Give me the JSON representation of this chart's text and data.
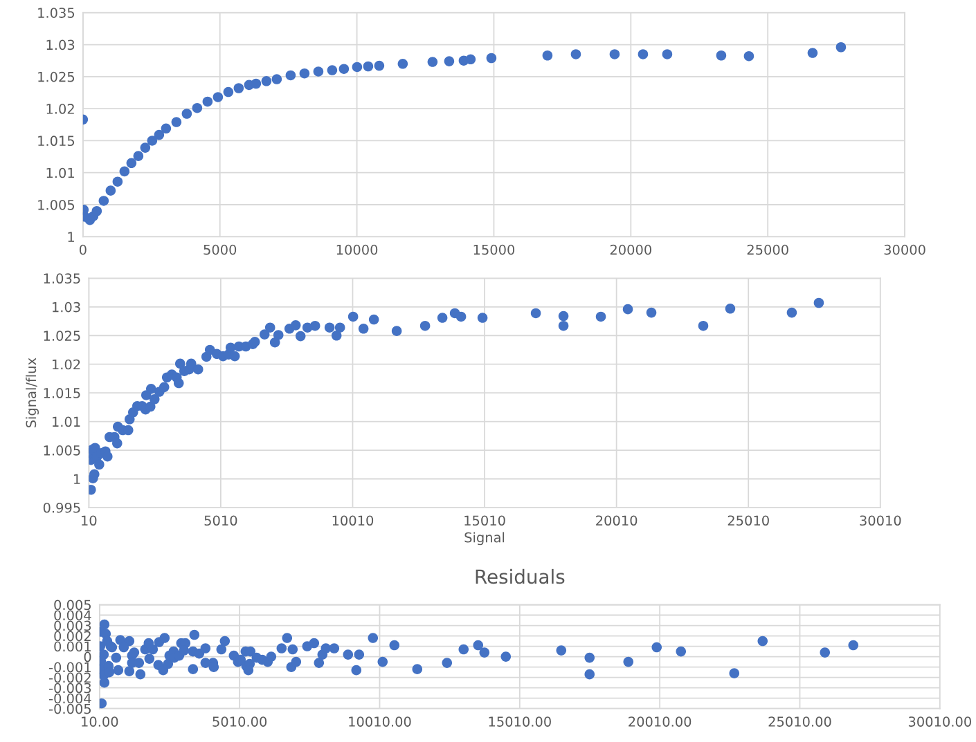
{
  "chart_data": [
    {
      "type": "scatter",
      "marker": "circle",
      "grid": true,
      "xlim": [
        0,
        30000
      ],
      "xticks": [
        0,
        5000,
        10000,
        15000,
        20000,
        25000,
        30000
      ],
      "ylim": [
        1,
        1.035
      ],
      "yticks": [
        1,
        1.005,
        1.01,
        1.015,
        1.02,
        1.025,
        1.03,
        1.035
      ],
      "series": [
        {
          "color": "#4472c4",
          "x": [
            0,
            25,
            76,
            253,
            379,
            505,
            758,
            1011,
            1264,
            1516,
            1769,
            2022,
            2274,
            2527,
            2780,
            3033,
            3412,
            3791,
            4170,
            4549,
            4928,
            5307,
            5686,
            6065,
            6318,
            6697,
            7076,
            7582,
            8087,
            8593,
            9098,
            9527,
            10008,
            10412,
            10816,
            11675,
            12762,
            13369,
            13900,
            14152,
            14910,
            16957,
            17994,
            19409,
            20445,
            21329,
            23300,
            24311,
            26636,
            27672
          ],
          "values": [
            1.0183,
            1.0042,
            1.0031,
            1.0026,
            1.0032,
            1.004,
            1.0056,
            1.0072,
            1.0086,
            1.0102,
            1.0115,
            1.0126,
            1.0139,
            1.015,
            1.0159,
            1.0169,
            1.0179,
            1.0192,
            1.0201,
            1.0211,
            1.0218,
            1.0226,
            1.0232,
            1.0237,
            1.0239,
            1.0243,
            1.0246,
            1.0252,
            1.0255,
            1.0258,
            1.026,
            1.0262,
            1.0265,
            1.0266,
            1.0267,
            1.027,
            1.0273,
            1.0274,
            1.0275,
            1.0277,
            1.0279,
            1.0283,
            1.0285,
            1.0285,
            1.0285,
            1.0285,
            1.0283,
            1.0282,
            1.0287,
            1.0296
          ]
        }
      ]
    },
    {
      "type": "scatter",
      "marker": "circle",
      "grid": true,
      "xlabel": "Signal",
      "ylabel": "Signal/flux",
      "xlim": [
        10,
        30010
      ],
      "xticks": [
        10,
        5010,
        10010,
        15010,
        20010,
        25010,
        30010
      ],
      "ylim": [
        0.995,
        1.035
      ],
      "yticks": [
        0.995,
        1,
        1.005,
        1.01,
        1.015,
        1.02,
        1.025,
        1.03,
        1.035
      ],
      "series": [
        {
          "color": "#4472c4",
          "x": [
            89,
            167,
            220,
            89,
            62,
            141,
            246,
            325,
            404,
            482,
            640,
            718,
            797,
            980,
            1085,
            1111,
            1295,
            1505,
            1557,
            1688,
            1846,
            2029,
            2160,
            2187,
            2344,
            2370,
            2501,
            2685,
            2868,
            2973,
            3157,
            3340,
            3419,
            3472,
            3629,
            3813,
            3891,
            4153,
            4468,
            4599,
            4861,
            5097,
            5307,
            5386,
            5543,
            5700,
            5962,
            6225,
            6304,
            6671,
            6881,
            7064,
            7196,
            7615,
            7851,
            8035,
            8297,
            8586,
            9136,
            9399,
            9530,
            10028,
            10421,
            10815,
            11680,
            12755,
            13411,
            13883,
            14119,
            14932,
            16952,
            18001,
            18001,
            19417,
            20440,
            21332,
            23298,
            24321,
            26655,
            27678
          ],
          "values": [
            0.9981,
            1.0001,
            1.0008,
            1.0033,
            1.0045,
            1.0051,
            1.0054,
            1.0039,
            1.0025,
            1.0045,
            1.0048,
            1.0039,
            1.0073,
            1.0073,
            1.0062,
            1.0091,
            1.0085,
            1.0085,
            1.0104,
            1.0116,
            1.0127,
            1.0127,
            1.0121,
            1.0146,
            1.0126,
            1.0157,
            1.0139,
            1.0152,
            1.016,
            1.0177,
            1.0182,
            1.0177,
            1.0167,
            1.0201,
            1.0188,
            1.0191,
            1.0201,
            1.0191,
            1.0213,
            1.0225,
            1.0218,
            1.0214,
            1.0217,
            1.0229,
            1.0214,
            1.0231,
            1.0231,
            1.0235,
            1.0239,
            1.0252,
            1.0264,
            1.0238,
            1.0251,
            1.0262,
            1.0268,
            1.0249,
            1.0264,
            1.0267,
            1.0264,
            1.025,
            1.0264,
            1.0283,
            1.0262,
            1.0278,
            1.0258,
            1.0267,
            1.0281,
            1.0289,
            1.0283,
            1.0281,
            1.0289,
            1.0284,
            1.0267,
            1.0283,
            1.0296,
            1.029,
            1.0267,
            1.0297,
            1.029,
            1.0307
          ]
        }
      ]
    },
    {
      "type": "scatter",
      "marker": "circle",
      "grid": true,
      "title": "Residuals",
      "xlim": [
        10,
        30010
      ],
      "xticks": [
        {
          "value": 10,
          "label": "10.00"
        },
        {
          "value": 5010,
          "label": "5010.00"
        },
        {
          "value": 10010,
          "label": "10010.00"
        },
        {
          "value": 15010,
          "label": "15010.00"
        },
        {
          "value": 20010,
          "label": "20010.00"
        },
        {
          "value": 25010,
          "label": "25010.00"
        },
        {
          "value": 30010,
          "label": "30010.00"
        }
      ],
      "ylim": [
        -0.005,
        0.005
      ],
      "yticks": [
        -0.005,
        -0.004,
        -0.003,
        -0.002,
        -0.001,
        0,
        0.001,
        0.002,
        0.003,
        0.004,
        0.005
      ],
      "series": [
        {
          "color": "#4472c4",
          "x": [
            84,
            183,
            183,
            59,
            232,
            35,
            158,
            282,
            405,
            59,
            59,
            158,
            331,
            356,
            455,
            751,
            1073,
            875,
            603,
            677,
            1073,
            1171,
            1246,
            1171,
            1418,
            1468,
            1641,
            1764,
            1913,
            1789,
            2110,
            2135,
            2333,
            2283,
            2456,
            2506,
            2654,
            2679,
            2852,
            2926,
            3074,
            3025,
            3346,
            3346,
            3395,
            3568,
            3791,
            3791,
            4062,
            4087,
            4359,
            4483,
            4804,
            4952,
            5051,
            5224,
            5397,
            5248,
            5372,
            5323,
            5619,
            5817,
            6014,
            6138,
            6509,
            6706,
            6855,
            6904,
            7028,
            7423,
            7670,
            7843,
            7967,
            8090,
            8387,
            8881,
            9177,
            9276,
            9770,
            10116,
            10536,
            11352,
            12414,
            13007,
            13526,
            13749,
            14515,
            16492,
            17504,
            17504,
            18888,
            19901,
            20766,
            22669,
            23682,
            25906,
            26919
          ],
          "values": [
            -0.0045,
            -0.0025,
            0.0031,
            0.0024,
            0.0022,
            0.001,
            0.0002,
            0.0015,
            0.001,
            -0.0004,
            -0.0012,
            -0.0018,
            -0.0009,
            -0.0015,
            0.0009,
            0.0016,
            0.0015,
            0.0009,
            -0.0001,
            -0.0013,
            -0.0014,
            0.0001,
            0.0004,
            -0.0006,
            -0.0006,
            -0.0017,
            0.0007,
            0.0013,
            0.0007,
            -0.0002,
            -0.0008,
            0.0014,
            0.0018,
            -0.0013,
            -0.0007,
            0.0001,
            0.0005,
            -0.0001,
            0.0001,
            0.0013,
            0.0013,
            0.0006,
            -0.0012,
            0.0005,
            0.0021,
            0.0003,
            0.0008,
            -0.0006,
            -0.0006,
            -0.001,
            0.0007,
            0.0015,
            0.0001,
            -0.0005,
            -0.0003,
            0.0005,
            0.0005,
            -0.0009,
            -0.0007,
            -0.0013,
            -0.0001,
            -0.0003,
            -0.0005,
            0,
            0.0008,
            0.0018,
            -0.001,
            0.0007,
            -0.0005,
            0.001,
            0.0013,
            -0.0006,
            0.0002,
            0.0008,
            0.0008,
            0.0002,
            -0.0013,
            0.0002,
            0.0018,
            -0.0005,
            0.0011,
            -0.0012,
            -0.0006,
            0.0007,
            0.0011,
            0.0004,
            0,
            0.0006,
            -0.0001,
            -0.0017,
            -0.0005,
            0.0009,
            0.0005,
            -0.0016,
            0.0015,
            0.0004,
            0.0011
          ]
        }
      ]
    }
  ]
}
